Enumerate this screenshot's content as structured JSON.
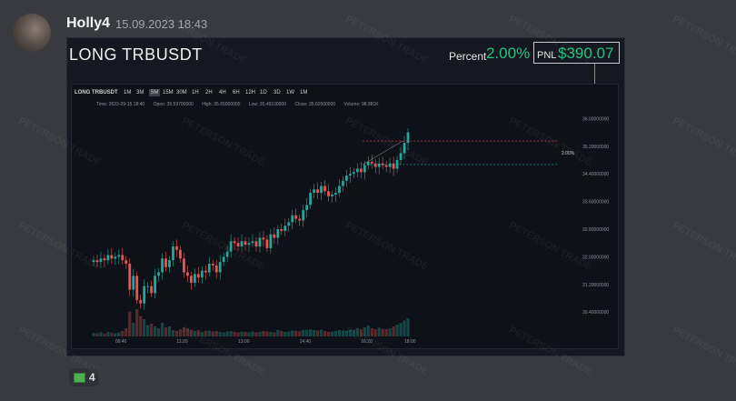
{
  "message": {
    "username": "Holly4",
    "timestamp": "15.09.2023 18:43"
  },
  "card": {
    "title": "LONG TRBUSDT",
    "percent_label": "Percent",
    "percent_value": "2.00%",
    "pnl_label": "PNL",
    "pnl_value": "$390.07"
  },
  "chart_toolbar": {
    "symbol": "LONG TRBUSDT",
    "timeframes": [
      "1M",
      "3M",
      "5M",
      "15M",
      "30M",
      "1H",
      "2H",
      "4H",
      "6H",
      "12H",
      "1D",
      "3D",
      "1W",
      "1M"
    ],
    "active_timeframe_index": 2
  },
  "ohlc_bar": {
    "time": "Time: 2023-09-15 18:40",
    "open": "Open: 35.59700000",
    "high": "High: 35.65000000",
    "low": "Low: 35.49100000",
    "close": "Close: 35.60500000",
    "volume": "Volume: 98.881K"
  },
  "chart_data": {
    "type": "candlestick",
    "x_tick_labels": [
      "09:40",
      "11:20",
      "13:00",
      "14:40",
      "16:20",
      "18:00"
    ],
    "y_tick_labels": [
      "36.00000000",
      "35.20000000",
      "34.40000000",
      "33.60000000",
      "32.80000000",
      "32.00000000",
      "31.20000000",
      "30.40000000"
    ],
    "ylim": [
      29.8,
      36.3
    ],
    "target_label": "2.00%",
    "target_price": 35.35,
    "entry_price": 34.67,
    "close_series": [
      31.9,
      31.85,
      31.95,
      31.9,
      32.05,
      31.95,
      32.0,
      32.05,
      31.9,
      31.8,
      31.05,
      31.45,
      30.75,
      30.65,
      31.15,
      31.15,
      30.95,
      31.45,
      31.55,
      31.95,
      31.7,
      31.9,
      32.3,
      32.2,
      31.95,
      31.55,
      31.45,
      31.25,
      31.5,
      31.4,
      31.6,
      31.55,
      31.8,
      31.75,
      31.55,
      31.85,
      32.0,
      32.15,
      32.45,
      32.4,
      32.3,
      32.45,
      32.35,
      32.4,
      32.45,
      32.3,
      32.55,
      32.5,
      32.25,
      32.65,
      32.55,
      32.8,
      32.75,
      32.9,
      33.0,
      33.2,
      33.1,
      33.05,
      33.35,
      33.5,
      33.85,
      33.95,
      33.85,
      34.05,
      33.9,
      33.75,
      33.8,
      33.85,
      34.05,
      34.2,
      34.35,
      34.4,
      34.45,
      34.55,
      34.45,
      34.65,
      34.75,
      34.7,
      34.6,
      34.7,
      34.65,
      34.6,
      34.7,
      34.55,
      34.8,
      35.0,
      35.3,
      35.6
    ],
    "volume_series": [
      8,
      7,
      9,
      6,
      10,
      8,
      7,
      9,
      12,
      18,
      55,
      30,
      60,
      45,
      38,
      25,
      28,
      22,
      18,
      30,
      20,
      22,
      14,
      12,
      16,
      20,
      18,
      14,
      12,
      14,
      10,
      12,
      13,
      11,
      12,
      10,
      9,
      11,
      12,
      10,
      9,
      11,
      10,
      9,
      11,
      9,
      10,
      12,
      11,
      10,
      9,
      14,
      12,
      10,
      11,
      13,
      12,
      11,
      14,
      15,
      16,
      14,
      13,
      15,
      12,
      10,
      11,
      12,
      14,
      13,
      12,
      15,
      14,
      18,
      16,
      20,
      24,
      18,
      16,
      19,
      17,
      16,
      18,
      22,
      26,
      30,
      35,
      40
    ],
    "colors": {
      "up": "#26a69a",
      "down": "#ef5350",
      "background": "#0e1117"
    }
  },
  "reactions": {
    "count": "4",
    "emoji_icon": "money-emoji-icon"
  },
  "watermark": "PETERSON TRADE"
}
